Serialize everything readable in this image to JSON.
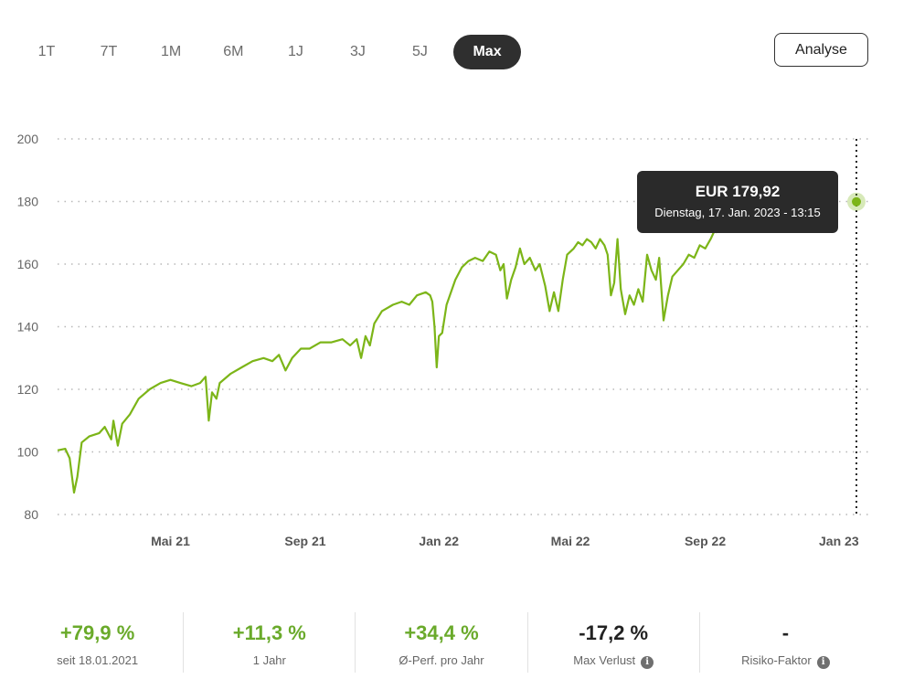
{
  "range_tabs": [
    {
      "label": "1T",
      "active": false
    },
    {
      "label": "7T",
      "active": false
    },
    {
      "label": "1M",
      "active": false
    },
    {
      "label": "6M",
      "active": false
    },
    {
      "label": "1J",
      "active": false
    },
    {
      "label": "3J",
      "active": false
    },
    {
      "label": "5J",
      "active": false
    },
    {
      "label": "Max",
      "active": true
    }
  ],
  "analyse_label": "Analyse",
  "tooltip": {
    "value": "EUR 179,92",
    "date": "Dienstag, 17. Jan. 2023 - 13:15"
  },
  "stats": [
    {
      "value": "+79,9 %",
      "label": "seit 18.01.2021",
      "tone": "pos",
      "info": false
    },
    {
      "value": "+11,3 %",
      "label": "1 Jahr",
      "tone": "pos",
      "info": false
    },
    {
      "value": "+34,4 %",
      "label": "Ø-Perf. pro Jahr",
      "tone": "pos",
      "info": false
    },
    {
      "value": "-17,2 %",
      "label": "Max Verlust",
      "tone": "neg",
      "info": true
    },
    {
      "value": "-",
      "label": "Risiko-Faktor",
      "tone": "neg",
      "info": true
    }
  ],
  "colors": {
    "line": "#7cb518",
    "grid": "#b8b8b8",
    "tooltip_bg": "#2a2a2a",
    "positive": "#6aaa2b"
  },
  "chart_data": {
    "type": "line",
    "currency": "EUR",
    "ylim": [
      80,
      200
    ],
    "yticks": [
      80,
      100,
      120,
      140,
      160,
      180,
      200
    ],
    "xlim": [
      "2021-01-18",
      "2023-01-17"
    ],
    "xticks": [
      {
        "label": "Mai 21",
        "date": "2021-05-01"
      },
      {
        "label": "Sep 21",
        "date": "2021-09-01"
      },
      {
        "label": "Jan 22",
        "date": "2022-01-01"
      },
      {
        "label": "Mai 22",
        "date": "2022-05-01"
      },
      {
        "label": "Sep 22",
        "date": "2022-09-01"
      },
      {
        "label": "Jan 23",
        "date": "2023-01-01"
      }
    ],
    "grid": true,
    "series": [
      {
        "points": [
          [
            "2021-01-18",
            100.5
          ],
          [
            "2021-01-25",
            101
          ],
          [
            "2021-01-29",
            98
          ],
          [
            "2021-02-02",
            87
          ],
          [
            "2021-02-05",
            92
          ],
          [
            "2021-02-09",
            103
          ],
          [
            "2021-02-16",
            105
          ],
          [
            "2021-02-25",
            106
          ],
          [
            "2021-03-02",
            108
          ],
          [
            "2021-03-08",
            104
          ],
          [
            "2021-03-10",
            110
          ],
          [
            "2021-03-14",
            102
          ],
          [
            "2021-03-18",
            109
          ],
          [
            "2021-03-25",
            112
          ],
          [
            "2021-04-02",
            117
          ],
          [
            "2021-04-12",
            120
          ],
          [
            "2021-04-22",
            122
          ],
          [
            "2021-05-01",
            123
          ],
          [
            "2021-05-10",
            122
          ],
          [
            "2021-05-20",
            121
          ],
          [
            "2021-05-28",
            122
          ],
          [
            "2021-06-02",
            124
          ],
          [
            "2021-06-05",
            110
          ],
          [
            "2021-06-08",
            119
          ],
          [
            "2021-06-12",
            117
          ],
          [
            "2021-06-15",
            122
          ],
          [
            "2021-06-25",
            125
          ],
          [
            "2021-07-05",
            127
          ],
          [
            "2021-07-15",
            129
          ],
          [
            "2021-07-25",
            130
          ],
          [
            "2021-08-02",
            129
          ],
          [
            "2021-08-08",
            131
          ],
          [
            "2021-08-14",
            126
          ],
          [
            "2021-08-20",
            130
          ],
          [
            "2021-08-28",
            133
          ],
          [
            "2021-09-05",
            133
          ],
          [
            "2021-09-15",
            135
          ],
          [
            "2021-09-25",
            135
          ],
          [
            "2021-10-05",
            136
          ],
          [
            "2021-10-12",
            134
          ],
          [
            "2021-10-18",
            136
          ],
          [
            "2021-10-22",
            130
          ],
          [
            "2021-10-26",
            137
          ],
          [
            "2021-10-30",
            134
          ],
          [
            "2021-11-03",
            141
          ],
          [
            "2021-11-10",
            145
          ],
          [
            "2021-11-20",
            147
          ],
          [
            "2021-11-28",
            148
          ],
          [
            "2021-12-05",
            147
          ],
          [
            "2021-12-12",
            150
          ],
          [
            "2021-12-20",
            151
          ],
          [
            "2021-12-24",
            150
          ],
          [
            "2021-12-26",
            148
          ],
          [
            "2021-12-28",
            140
          ],
          [
            "2021-12-30",
            127
          ],
          [
            "2022-01-01",
            137
          ],
          [
            "2022-01-04",
            138
          ],
          [
            "2022-01-08",
            147
          ],
          [
            "2022-01-12",
            151
          ],
          [
            "2022-01-16",
            155
          ],
          [
            "2022-01-22",
            159
          ],
          [
            "2022-01-28",
            161
          ],
          [
            "2022-02-03",
            162
          ],
          [
            "2022-02-10",
            161
          ],
          [
            "2022-02-16",
            164
          ],
          [
            "2022-02-22",
            163
          ],
          [
            "2022-02-26",
            158
          ],
          [
            "2022-03-01",
            160
          ],
          [
            "2022-03-04",
            149
          ],
          [
            "2022-03-08",
            155
          ],
          [
            "2022-03-12",
            159
          ],
          [
            "2022-03-16",
            165
          ],
          [
            "2022-03-20",
            160
          ],
          [
            "2022-03-25",
            162
          ],
          [
            "2022-03-30",
            158
          ],
          [
            "2022-04-03",
            160
          ],
          [
            "2022-04-08",
            153
          ],
          [
            "2022-04-12",
            145
          ],
          [
            "2022-04-16",
            151
          ],
          [
            "2022-04-20",
            145
          ],
          [
            "2022-04-24",
            155
          ],
          [
            "2022-04-28",
            163
          ],
          [
            "2022-05-04",
            165
          ],
          [
            "2022-05-08",
            167
          ],
          [
            "2022-05-12",
            166
          ],
          [
            "2022-05-16",
            168
          ],
          [
            "2022-05-20",
            167
          ],
          [
            "2022-05-24",
            165
          ],
          [
            "2022-05-28",
            168
          ],
          [
            "2022-06-01",
            166
          ],
          [
            "2022-06-04",
            163
          ],
          [
            "2022-06-07",
            150
          ],
          [
            "2022-06-10",
            154
          ],
          [
            "2022-06-13",
            168
          ],
          [
            "2022-06-16",
            152
          ],
          [
            "2022-06-20",
            144
          ],
          [
            "2022-06-24",
            150
          ],
          [
            "2022-06-28",
            147
          ],
          [
            "2022-07-02",
            152
          ],
          [
            "2022-07-06",
            148
          ],
          [
            "2022-07-10",
            163
          ],
          [
            "2022-07-14",
            158
          ],
          [
            "2022-07-18",
            155
          ],
          [
            "2022-07-21",
            162
          ],
          [
            "2022-07-25",
            142
          ],
          [
            "2022-07-29",
            150
          ],
          [
            "2022-08-02",
            156
          ],
          [
            "2022-08-07",
            158
          ],
          [
            "2022-08-12",
            160
          ],
          [
            "2022-08-17",
            163
          ],
          [
            "2022-08-22",
            162
          ],
          [
            "2022-08-27",
            166
          ],
          [
            "2022-09-01",
            165
          ],
          [
            "2022-09-06",
            168
          ],
          [
            "2022-09-10",
            171
          ],
          [
            "2022-09-12",
            170
          ]
        ]
      }
    ],
    "marker": {
      "date": "2023-01-17",
      "value": 179.92
    }
  }
}
